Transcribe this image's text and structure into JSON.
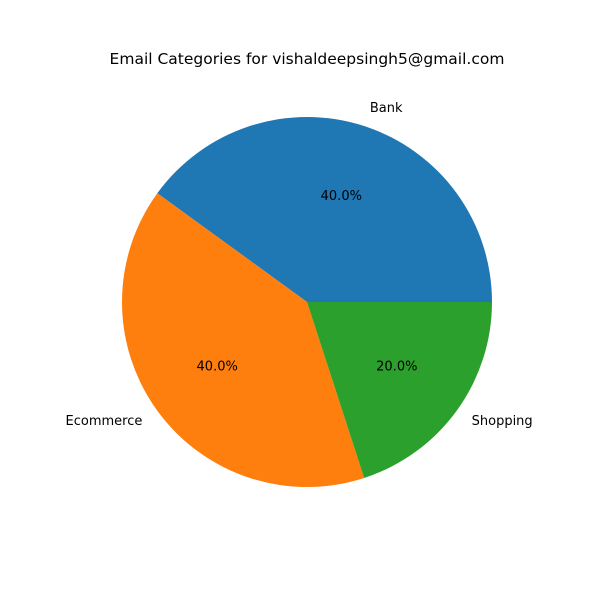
{
  "chart_data": {
    "type": "pie",
    "title": "Email Categories for vishaldeepsingh5@gmail.com",
    "categories": [
      "Bank",
      "Ecommerce",
      "Shopping"
    ],
    "values": [
      40.0,
      40.0,
      20.0
    ],
    "percent_labels": [
      "40.0%",
      "40.0%",
      "20.0%"
    ],
    "colors": [
      "#1f77b4",
      "#ff7f0e",
      "#2ca02c"
    ],
    "start_angle_deg": 0,
    "direction": "counterclockwise",
    "legend": "none"
  }
}
